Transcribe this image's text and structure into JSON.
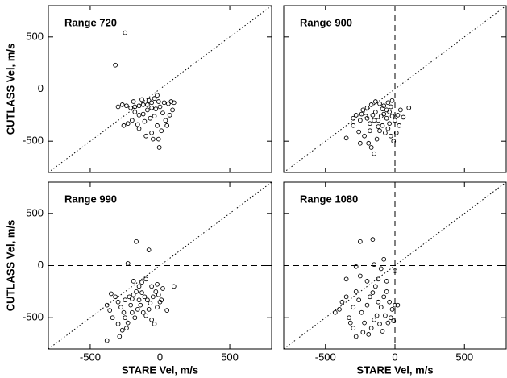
{
  "chart_data": [
    {
      "type": "scatter",
      "title": "Range 720",
      "ylabel": "CUTLASS Vel, m/s",
      "xlim": [
        -800,
        800
      ],
      "ylim": [
        -800,
        800
      ],
      "xticks": [
        -500,
        0,
        500
      ],
      "yticks": [
        -500,
        0,
        500
      ],
      "show_xtick_labels": false,
      "show_ytick_labels": true,
      "hline": 0,
      "vline": 0,
      "diagonal": true,
      "color": "#000000",
      "x": [
        -250,
        -320,
        -20,
        -40,
        -10,
        30,
        60,
        80,
        100,
        -60,
        -90,
        -120,
        -150,
        -180,
        -210,
        -240,
        -270,
        -300,
        -180,
        -150,
        -120,
        -90,
        -60,
        -30,
        0,
        -200,
        -230,
        -160,
        -110,
        -70,
        -40,
        -20,
        10,
        40,
        70,
        90,
        -10,
        -5,
        -60,
        -100,
        -150,
        -260,
        -190,
        -130,
        -80,
        20,
        50,
        -50
      ],
      "values": [
        540,
        230,
        -60,
        -90,
        -120,
        -130,
        -140,
        -120,
        -130,
        -130,
        -150,
        -150,
        -160,
        -170,
        -180,
        -160,
        -150,
        -170,
        -220,
        -250,
        -240,
        -200,
        -180,
        -190,
        -170,
        -300,
        -330,
        -340,
        -310,
        -280,
        -260,
        -350,
        -400,
        -300,
        -250,
        -200,
        -480,
        -560,
        -420,
        -450,
        -380,
        -350,
        -120,
        -100,
        -110,
        -230,
        -350,
        -480
      ]
    },
    {
      "type": "scatter",
      "title": "Range 900",
      "xlim": [
        -800,
        800
      ],
      "ylim": [
        -800,
        800
      ],
      "xticks": [
        -500,
        0,
        500
      ],
      "yticks": [
        -500,
        0,
        500
      ],
      "show_xtick_labels": false,
      "show_ytick_labels": false,
      "hline": 0,
      "vline": 0,
      "diagonal": true,
      "color": "#000000",
      "x": [
        -350,
        -300,
        -280,
        -250,
        -230,
        -200,
        -180,
        -160,
        -140,
        -120,
        -100,
        -80,
        -60,
        -40,
        -20,
        0,
        20,
        40,
        60,
        100,
        -260,
        -220,
        -190,
        -170,
        -150,
        -130,
        -110,
        -90,
        -70,
        -50,
        -30,
        -10,
        10,
        -200,
        -170,
        -140,
        -110,
        -80,
        -50,
        -20,
        -240,
        -210,
        -150,
        -90,
        -60,
        -30,
        -180,
        -120,
        -250,
        -40,
        30,
        -300
      ],
      "values": [
        -470,
        -350,
        -250,
        -300,
        -200,
        -280,
        -330,
        -250,
        -220,
        -300,
        -260,
        -240,
        -280,
        -220,
        -260,
        -300,
        -250,
        -200,
        -270,
        -180,
        -410,
        -450,
        -520,
        -560,
        -620,
        -480,
        -400,
        -350,
        -420,
        -380,
        -450,
        -500,
        -420,
        -180,
        -150,
        -120,
        -140,
        -160,
        -130,
        -110,
        -240,
        -260,
        -300,
        -190,
        -200,
        -170,
        -400,
        -360,
        -520,
        -330,
        -350,
        -280
      ]
    },
    {
      "type": "scatter",
      "title": "Range 990",
      "xlabel": "STARE Vel, m/s",
      "ylabel": "CUTLASS Vel, m/s",
      "xlim": [
        -800,
        800
      ],
      "ylim": [
        -800,
        800
      ],
      "xticks": [
        -500,
        0,
        500
      ],
      "yticks": [
        -500,
        0,
        500
      ],
      "show_xtick_labels": true,
      "show_ytick_labels": true,
      "hline": 0,
      "vline": 0,
      "diagonal": true,
      "color": "#000000",
      "x": [
        -170,
        -80,
        -230,
        -350,
        -320,
        -300,
        -280,
        -260,
        -250,
        -230,
        -210,
        -200,
        -190,
        -170,
        -150,
        -130,
        -110,
        -90,
        -70,
        -50,
        -30,
        -10,
        10,
        50,
        100,
        -380,
        -360,
        -340,
        -300,
        -270,
        -290,
        -380,
        -240,
        -200,
        -180,
        -160,
        -140,
        -120,
        -100,
        -80,
        -60,
        -40,
        -20,
        0,
        -220,
        -150,
        -130,
        -100,
        -60,
        -20,
        20,
        -250,
        -190
      ],
      "values": [
        230,
        150,
        20,
        -270,
        -300,
        -350,
        -400,
        -450,
        -500,
        -550,
        -380,
        -320,
        -280,
        -250,
        -200,
        -260,
        -300,
        -330,
        -360,
        -300,
        -250,
        -280,
        -330,
        -430,
        -200,
        -380,
        -430,
        -500,
        -560,
        -620,
        -680,
        -720,
        -600,
        -450,
        -500,
        -420,
        -380,
        -450,
        -480,
        -420,
        -520,
        -560,
        -400,
        -350,
        -300,
        -330,
        -160,
        -130,
        -200,
        -180,
        -220,
        -330,
        -150
      ]
    },
    {
      "type": "scatter",
      "title": "Range 1080",
      "xlabel": "STARE Vel, m/s",
      "xlim": [
        -800,
        800
      ],
      "ylim": [
        -800,
        800
      ],
      "xticks": [
        -500,
        0,
        500
      ],
      "yticks": [
        -500,
        0,
        500
      ],
      "show_xtick_labels": true,
      "show_ytick_labels": false,
      "hline": 0,
      "vline": 0,
      "diagonal": true,
      "color": "#000000",
      "x": [
        -160,
        -250,
        -100,
        -150,
        -280,
        -80,
        0,
        -430,
        -400,
        -380,
        -350,
        -330,
        -300,
        -280,
        -260,
        -240,
        -220,
        -200,
        -180,
        -160,
        -140,
        -120,
        -100,
        -80,
        -60,
        -40,
        -20,
        0,
        20,
        -300,
        -280,
        -230,
        -190,
        -170,
        -150,
        -130,
        -110,
        -90,
        -70,
        -50,
        -30,
        -10,
        -200,
        -120,
        -60,
        -350,
        -250,
        -320
      ],
      "values": [
        250,
        230,
        -30,
        10,
        -10,
        60,
        -50,
        -450,
        -420,
        -350,
        -300,
        -500,
        -400,
        -250,
        -330,
        -450,
        -550,
        -380,
        -300,
        -260,
        -200,
        -350,
        -400,
        -300,
        -250,
        -350,
        -420,
        -380,
        -380,
        -600,
        -680,
        -640,
        -660,
        -600,
        -520,
        -480,
        -560,
        -630,
        -480,
        -550,
        -500,
        -530,
        -150,
        -130,
        -150,
        -130,
        -100,
        -550
      ]
    }
  ]
}
